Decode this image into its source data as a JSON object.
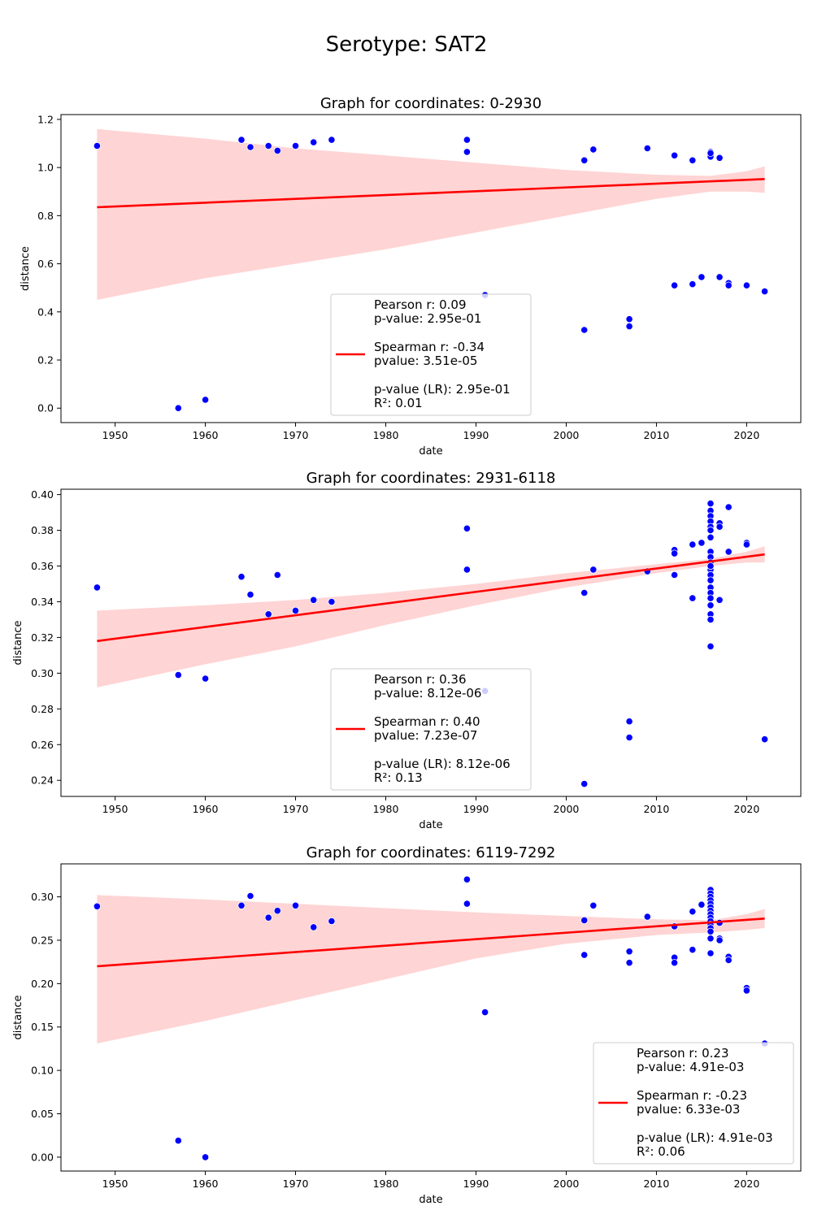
{
  "figure": {
    "suptitle": "Serotype: SAT2",
    "colors": {
      "points": "#0000ff",
      "regression": "#ff0000",
      "band": "#ffcccc"
    }
  },
  "chart_data": [
    {
      "type": "scatter",
      "title": "Graph for coordinates: 0-2930",
      "xlabel": "date",
      "ylabel": "distance",
      "xlim": [
        1944,
        2026
      ],
      "ylim": [
        -0.06,
        1.22
      ],
      "xticks": [
        1950,
        1960,
        1970,
        1980,
        1990,
        2000,
        2010,
        2020
      ],
      "yticks": [
        0.0,
        0.2,
        0.4,
        0.6,
        0.8,
        1.0,
        1.2
      ],
      "ytick_labels": [
        "0.0",
        "0.2",
        "0.4",
        "0.6",
        "0.8",
        "1.0",
        "1.2"
      ],
      "legend_position": "lower-center",
      "legend": {
        "pearson": "Pearson r: 0.09",
        "pearson_p": "p-value: 2.95e-01",
        "spearman": "Spearman r: -0.34",
        "spearman_p": "pvalue: 3.51e-05",
        "lr_p": "p-value (LR): 2.95e-01",
        "r2": "R²: 0.01"
      },
      "regression": {
        "x": [
          1948,
          2022
        ],
        "y": [
          0.835,
          0.952
        ]
      },
      "confidence_band": {
        "x": [
          1948,
          1960,
          1970,
          1980,
          1990,
          2000,
          2010,
          2016,
          2020,
          2022
        ],
        "upper": [
          1.16,
          1.12,
          1.08,
          1.05,
          1.02,
          0.99,
          0.97,
          0.965,
          0.985,
          1.005
        ],
        "lower": [
          0.45,
          0.54,
          0.6,
          0.66,
          0.73,
          0.8,
          0.87,
          0.9,
          0.9,
          0.895
        ]
      },
      "points": {
        "x": [
          1948,
          1957,
          1960,
          1964,
          1965,
          1967,
          1968,
          1970,
          1972,
          1974,
          1989,
          1989,
          1991,
          2002,
          2002,
          2003,
          2007,
          2007,
          2009,
          2012,
          2012,
          2014,
          2014,
          2015,
          2016,
          2016,
          2016,
          2016,
          2017,
          2017,
          2018,
          2018,
          2020,
          2022
        ],
        "y": [
          1.09,
          0.0,
          0.035,
          1.115,
          1.085,
          1.09,
          1.07,
          1.09,
          1.105,
          1.115,
          1.115,
          1.065,
          0.47,
          1.03,
          0.325,
          1.075,
          0.37,
          0.34,
          1.08,
          1.05,
          0.51,
          1.03,
          0.515,
          0.545,
          1.065,
          1.055,
          1.045,
          1.06,
          1.04,
          0.545,
          0.52,
          0.51,
          0.51,
          0.485
        ]
      }
    },
    {
      "type": "scatter",
      "title": "Graph for coordinates: 2931-6118",
      "xlabel": "date",
      "ylabel": "distance",
      "xlim": [
        1944,
        2026
      ],
      "ylim": [
        0.231,
        0.403
      ],
      "xticks": [
        1950,
        1960,
        1970,
        1980,
        1990,
        2000,
        2010,
        2020
      ],
      "yticks": [
        0.24,
        0.26,
        0.28,
        0.3,
        0.32,
        0.34,
        0.36,
        0.38,
        0.4
      ],
      "ytick_labels": [
        "0.24",
        "0.26",
        "0.28",
        "0.30",
        "0.32",
        "0.34",
        "0.36",
        "0.38",
        "0.40"
      ],
      "legend_position": "lower-center",
      "legend": {
        "pearson": "Pearson r: 0.36",
        "pearson_p": "p-value: 8.12e-06",
        "spearman": "Spearman r: 0.40",
        "spearman_p": "pvalue: 7.23e-07",
        "lr_p": "p-value (LR): 8.12e-06",
        "r2": "R²: 0.13"
      },
      "regression": {
        "x": [
          1948,
          2022
        ],
        "y": [
          0.318,
          0.3665
        ]
      },
      "confidence_band": {
        "x": [
          1948,
          1960,
          1970,
          1980,
          1990,
          2000,
          2010,
          2016,
          2020,
          2022
        ],
        "upper": [
          0.335,
          0.338,
          0.341,
          0.345,
          0.35,
          0.356,
          0.361,
          0.364,
          0.368,
          0.371
        ],
        "lower": [
          0.292,
          0.305,
          0.315,
          0.327,
          0.338,
          0.348,
          0.356,
          0.36,
          0.362,
          0.362
        ]
      },
      "points": {
        "x": [
          1948,
          1957,
          1960,
          1964,
          1965,
          1967,
          1968,
          1970,
          1972,
          1974,
          1989,
          1989,
          1991,
          2002,
          2002,
          2003,
          2007,
          2007,
          2009,
          2012,
          2012,
          2012,
          2014,
          2014,
          2015,
          2016,
          2016,
          2016,
          2016,
          2016,
          2016,
          2016,
          2016,
          2016,
          2016,
          2016,
          2016,
          2016,
          2016,
          2016,
          2016,
          2016,
          2016,
          2016,
          2016,
          2016,
          2017,
          2017,
          2017,
          2018,
          2018,
          2020,
          2020,
          2022
        ],
        "y": [
          0.348,
          0.299,
          0.297,
          0.354,
          0.344,
          0.333,
          0.355,
          0.335,
          0.341,
          0.34,
          0.381,
          0.358,
          0.29,
          0.345,
          0.238,
          0.358,
          0.273,
          0.264,
          0.357,
          0.369,
          0.367,
          0.355,
          0.372,
          0.342,
          0.373,
          0.395,
          0.391,
          0.388,
          0.385,
          0.382,
          0.38,
          0.376,
          0.368,
          0.365,
          0.362,
          0.358,
          0.355,
          0.352,
          0.348,
          0.345,
          0.342,
          0.338,
          0.333,
          0.33,
          0.315,
          0.36,
          0.384,
          0.382,
          0.341,
          0.393,
          0.368,
          0.373,
          0.372,
          0.263
        ]
      }
    },
    {
      "type": "scatter",
      "title": "Graph for coordinates: 6119-7292",
      "xlabel": "date",
      "ylabel": "distance",
      "xlim": [
        1944,
        2026
      ],
      "ylim": [
        -0.016,
        0.338
      ],
      "xticks": [
        1950,
        1960,
        1970,
        1980,
        1990,
        2000,
        2010,
        2020
      ],
      "yticks": [
        0.0,
        0.05,
        0.1,
        0.15,
        0.2,
        0.25,
        0.3
      ],
      "ytick_labels": [
        "0.00",
        "0.05",
        "0.10",
        "0.15",
        "0.20",
        "0.25",
        "0.30"
      ],
      "legend_position": "lower-right",
      "legend": {
        "pearson": "Pearson r: 0.23",
        "pearson_p": "p-value: 4.91e-03",
        "spearman": "Spearman r: -0.23",
        "spearman_p": "pvalue: 6.33e-03",
        "lr_p": "p-value (LR): 4.91e-03",
        "r2": "R²: 0.06"
      },
      "regression": {
        "x": [
          1948,
          2022
        ],
        "y": [
          0.22,
          0.275
        ]
      },
      "confidence_band": {
        "x": [
          1948,
          1960,
          1970,
          1980,
          1990,
          2000,
          2010,
          2016,
          2020,
          2022
        ],
        "upper": [
          0.302,
          0.297,
          0.292,
          0.287,
          0.282,
          0.278,
          0.274,
          0.273,
          0.28,
          0.286
        ],
        "lower": [
          0.131,
          0.157,
          0.181,
          0.205,
          0.229,
          0.246,
          0.256,
          0.259,
          0.262,
          0.264
        ]
      },
      "points": {
        "x": [
          1948,
          1957,
          1960,
          1964,
          1965,
          1967,
          1968,
          1970,
          1972,
          1974,
          1989,
          1989,
          1991,
          2002,
          2002,
          2003,
          2007,
          2007,
          2009,
          2012,
          2012,
          2012,
          2014,
          2014,
          2015,
          2016,
          2016,
          2016,
          2016,
          2016,
          2016,
          2016,
          2016,
          2016,
          2016,
          2016,
          2016,
          2016,
          2016,
          2016,
          2017,
          2017,
          2017,
          2018,
          2018,
          2020,
          2020,
          2022
        ],
        "y": [
          0.289,
          0.019,
          0.0,
          0.29,
          0.301,
          0.276,
          0.284,
          0.29,
          0.265,
          0.272,
          0.32,
          0.292,
          0.167,
          0.273,
          0.233,
          0.29,
          0.237,
          0.224,
          0.277,
          0.266,
          0.23,
          0.224,
          0.283,
          0.239,
          0.291,
          0.308,
          0.304,
          0.3,
          0.296,
          0.292,
          0.288,
          0.284,
          0.28,
          0.276,
          0.272,
          0.268,
          0.264,
          0.26,
          0.252,
          0.235,
          0.27,
          0.252,
          0.25,
          0.231,
          0.227,
          0.195,
          0.192,
          0.131
        ]
      }
    }
  ]
}
